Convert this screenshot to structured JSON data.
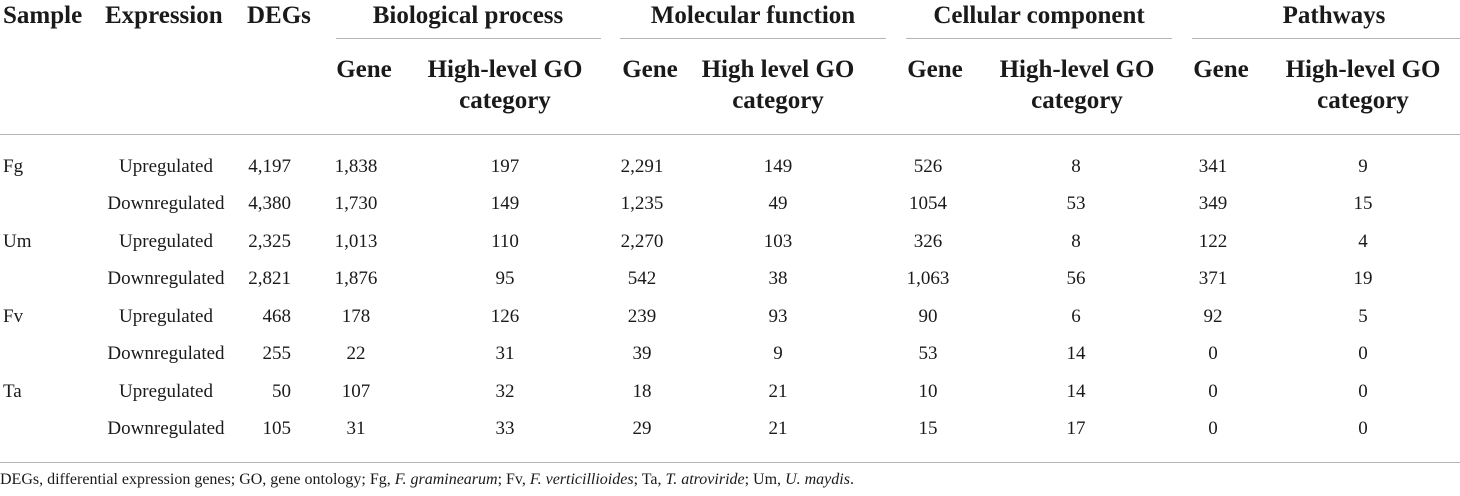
{
  "table": {
    "headers": {
      "sample": "Sample",
      "expression": "Expression",
      "degs": "DEGs",
      "biological_process": "Biological process",
      "molecular_function": "Molecular function",
      "cellular_component": "Cellular component",
      "pathways": "Pathways"
    },
    "subheaders": {
      "gene": "Gene",
      "bp_category": [
        "High-level GO",
        "category"
      ],
      "mf_category": [
        "High level GO",
        "category"
      ],
      "cc_category": [
        "High-level GO",
        "category"
      ],
      "pw_category": [
        "High-level GO",
        "category"
      ]
    },
    "rows": [
      {
        "sample": "Fg",
        "expression": "Upregulated",
        "degs": "4,197",
        "bp_gene": "1,838",
        "bp_cat": "197",
        "mf_gene": "2,291",
        "mf_cat": "149",
        "cc_gene": "526",
        "cc_cat": "8",
        "pw_gene": "341",
        "pw_cat": "9"
      },
      {
        "sample": "",
        "expression": "Downregulated",
        "degs": "4,380",
        "bp_gene": "1,730",
        "bp_cat": "149",
        "mf_gene": "1,235",
        "mf_cat": "49",
        "cc_gene": "1054",
        "cc_cat": "53",
        "pw_gene": "349",
        "pw_cat": "15"
      },
      {
        "sample": "Um",
        "expression": "Upregulated",
        "degs": "2,325",
        "bp_gene": "1,013",
        "bp_cat": "110",
        "mf_gene": "2,270",
        "mf_cat": "103",
        "cc_gene": "326",
        "cc_cat": "8",
        "pw_gene": "122",
        "pw_cat": "4"
      },
      {
        "sample": "",
        "expression": "Downregulated",
        "degs": "2,821",
        "bp_gene": "1,876",
        "bp_cat": "95",
        "mf_gene": "542",
        "mf_cat": "38",
        "cc_gene": "1,063",
        "cc_cat": "56",
        "pw_gene": "371",
        "pw_cat": "19"
      },
      {
        "sample": "Fv",
        "expression": "Upregulated",
        "degs": "468",
        "bp_gene": "178",
        "bp_cat": "126",
        "mf_gene": "239",
        "mf_cat": "93",
        "cc_gene": "90",
        "cc_cat": "6",
        "pw_gene": "92",
        "pw_cat": "5"
      },
      {
        "sample": "",
        "expression": "Downregulated",
        "degs": "255",
        "bp_gene": "22",
        "bp_cat": "31",
        "mf_gene": "39",
        "mf_cat": "9",
        "cc_gene": "53",
        "cc_cat": "14",
        "pw_gene": "0",
        "pw_cat": "0"
      },
      {
        "sample": "Ta",
        "expression": "Upregulated",
        "degs": "50",
        "bp_gene": "107",
        "bp_cat": "32",
        "mf_gene": "18",
        "mf_cat": "21",
        "cc_gene": "10",
        "cc_cat": "14",
        "pw_gene": "0",
        "pw_cat": "0"
      },
      {
        "sample": "",
        "expression": "Downregulated",
        "degs": "105",
        "bp_gene": "31",
        "bp_cat": "33",
        "mf_gene": "29",
        "mf_cat": "21",
        "cc_gene": "15",
        "cc_cat": "17",
        "pw_gene": "0",
        "pw_cat": "0"
      }
    ]
  },
  "footnote": {
    "parts": [
      {
        "text": "DEGs, differential expression genes; GO, gene ontology; Fg, ",
        "italic": false
      },
      {
        "text": "F. graminearum",
        "italic": true
      },
      {
        "text": "; Fv, ",
        "italic": false
      },
      {
        "text": "F. verticillioides",
        "italic": true
      },
      {
        "text": "; Ta, ",
        "italic": false
      },
      {
        "text": "T. atroviride",
        "italic": true
      },
      {
        "text": "; Um, ",
        "italic": false
      },
      {
        "text": "U. maydis",
        "italic": true
      },
      {
        "text": ".",
        "italic": false
      }
    ]
  }
}
